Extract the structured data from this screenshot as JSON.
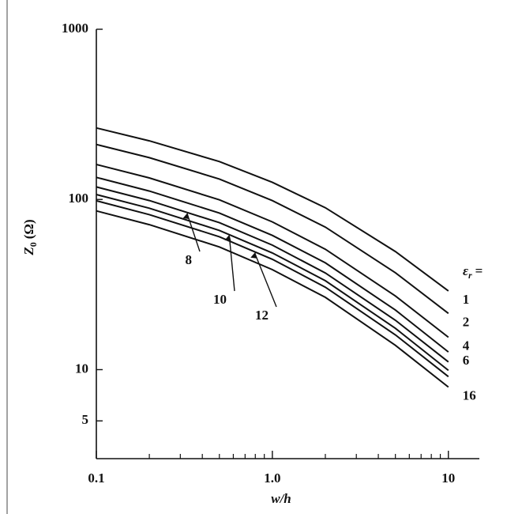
{
  "chart_data": {
    "type": "line",
    "xlabel": "w/h",
    "ylabel_symbol": "Z",
    "ylabel_subscript": "0",
    "ylabel_unit": "(Ω)",
    "legend_symbol": "ε",
    "legend_subscript": "r",
    "legend_suffix": "=",
    "x": [
      0.1,
      0.2,
      0.5,
      1,
      2,
      5,
      10
    ],
    "xlog": true,
    "ylog": true,
    "xlim": [
      0.1,
      15
    ],
    "ylim": [
      3,
      1000
    ],
    "xticks": [
      0.1,
      {
        "value": 1,
        "label": "1.0"
      },
      10
    ],
    "xminorticks": [
      0.2,
      0.3,
      0.4,
      0.5,
      0.6,
      0.7,
      0.8,
      0.9,
      2,
      3,
      4,
      5,
      6,
      7,
      8,
      9
    ],
    "yticks": [
      1000,
      100,
      10,
      5
    ],
    "color": "#111111",
    "series": [
      {
        "name": "1",
        "values": [
          263,
          221,
          167,
          126,
          89.4,
          49.4,
          29.0
        ]
      },
      {
        "name": "2",
        "values": [
          210.4,
          176.0,
          131.8,
          98.4,
          68.8,
          37.1,
          21.4
        ]
      },
      {
        "name": "4",
        "values": [
          160.5,
          133.8,
          99.5,
          73.8,
          51.0,
          27.1,
          15.5
        ]
      },
      {
        "name": "6",
        "values": [
          134.8,
          112.1,
          83.2,
          61.5,
          42.4,
          22.4,
          12.7
        ]
      },
      {
        "name": "8",
        "values": [
          118.4,
          98.5,
          73.0,
          53.9,
          37.0,
          19.5,
          11.1
        ]
      },
      {
        "name": "10",
        "values": [
          106.9,
          88.8,
          65.8,
          48.5,
          33.3,
          17.5,
          9.9
        ]
      },
      {
        "name": "12",
        "values": [
          98.2,
          81.5,
          60.4,
          44.5,
          30.5,
          16.0,
          9.1
        ]
      },
      {
        "name": "16",
        "values": [
          85.7,
          71.1,
          52.6,
          38.7,
          26.6,
          13.9,
          7.9
        ]
      }
    ]
  }
}
